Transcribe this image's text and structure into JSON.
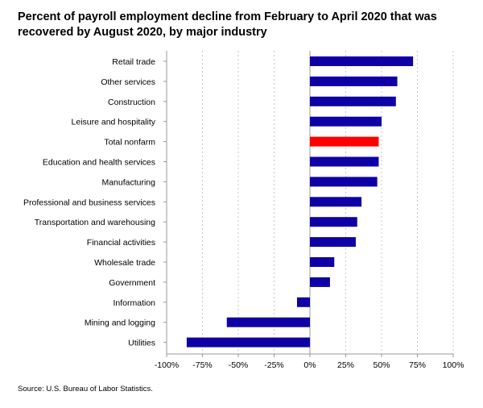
{
  "title": "Percent of payroll employment decline from February to April 2020 that was recovered by August 2020, by major industry",
  "source": "Source: U.S. Bureau of Labor Statistics.",
  "colors": {
    "bar": "#0e00a5",
    "highlight": "#ff0000",
    "grid": "#c8c8c8",
    "axis": "#999999"
  },
  "chart_data": {
    "type": "bar",
    "orientation": "horizontal",
    "title": "Percent of payroll employment decline from February to April 2020 that was recovered by August 2020, by major industry",
    "xlabel": "",
    "ylabel": "",
    "xlim": [
      -100,
      100
    ],
    "x_ticks": [
      -100,
      -75,
      -50,
      -25,
      0,
      25,
      50,
      75,
      100
    ],
    "x_tick_labels": [
      "-100%",
      "-75%",
      "-50%",
      "-25%",
      "0%",
      "25%",
      "50%",
      "75%",
      "100%"
    ],
    "grid": "vertical dotted",
    "legend": "none",
    "highlight_category": "Total nonfarm",
    "categories": [
      "Retail trade",
      "Other services",
      "Construction",
      "Leisure and hospitality",
      "Total nonfarm",
      "Education and health services",
      "Manufacturing",
      "Professional and business services",
      "Transportation and warehousing",
      "Financial activities",
      "Wholesale trade",
      "Government",
      "Information",
      "Mining and logging",
      "Utilities"
    ],
    "values": [
      72,
      61,
      60,
      50,
      48,
      48,
      47,
      36,
      33,
      32,
      17,
      14,
      -9,
      -58,
      -86
    ]
  }
}
